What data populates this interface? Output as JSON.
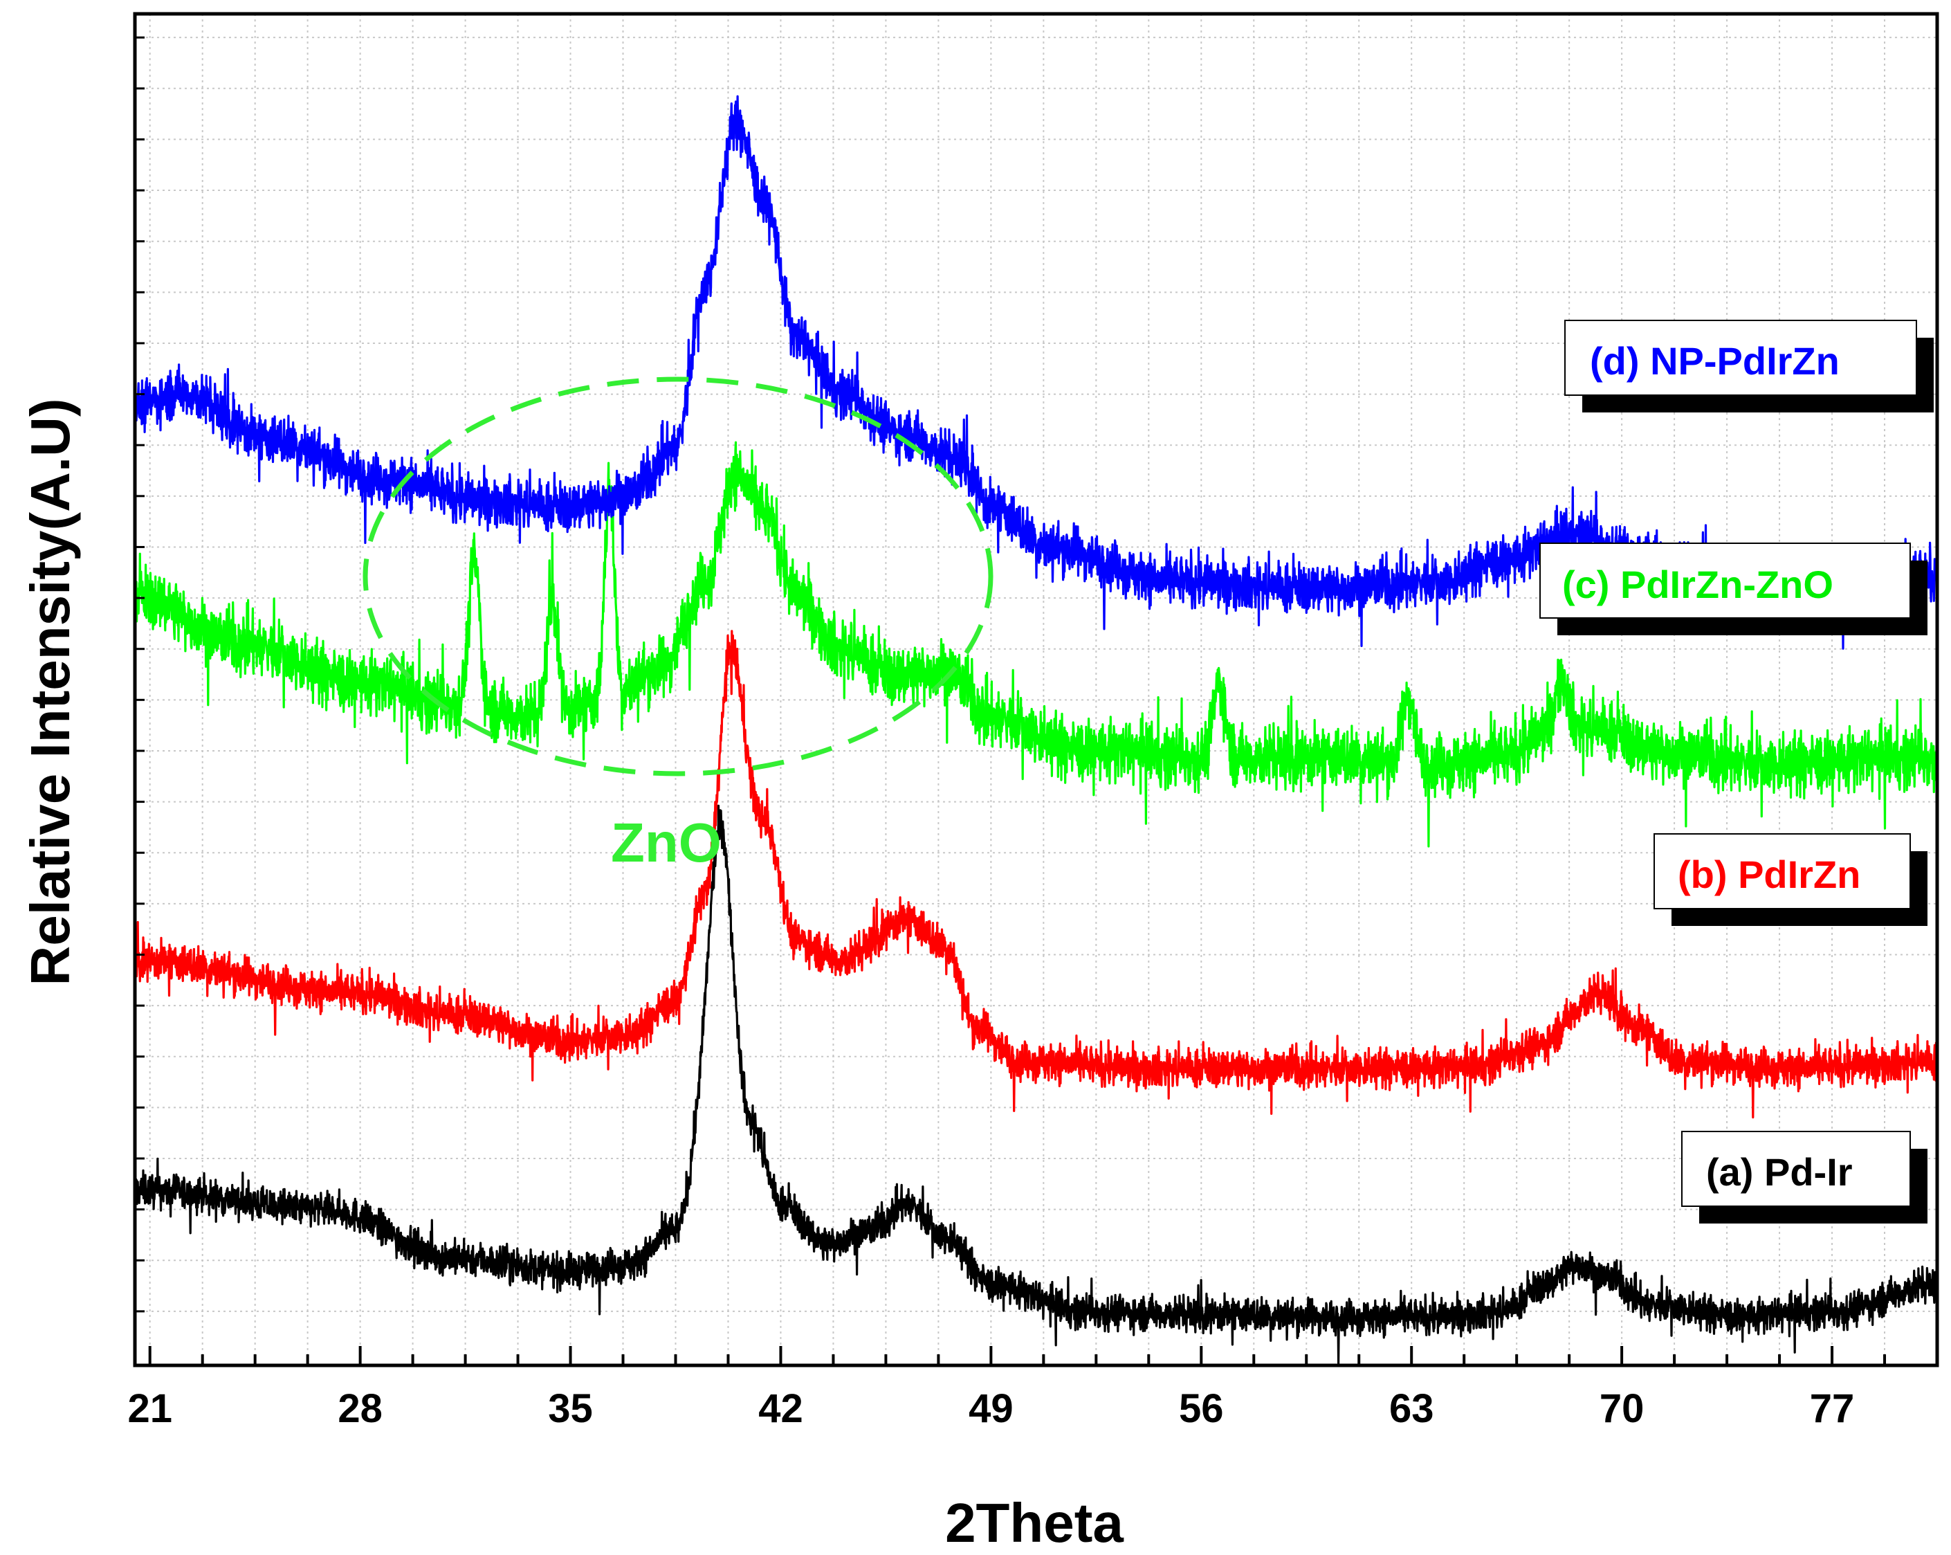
{
  "chart_data": {
    "type": "line",
    "title": "",
    "xlabel": "2Theta",
    "ylabel": "Relative Intensity(A.U)",
    "xlim": [
      20.5,
      80.5
    ],
    "ylim": [
      0,
      100
    ],
    "x_ticks": [
      21,
      28,
      35,
      42,
      49,
      56,
      63,
      70,
      77
    ],
    "grid": true,
    "y_tick_labels_shown": false,
    "series": [
      {
        "name": "(a) Pd-Ir",
        "color": "#000000",
        "baseline": [
          [
            20.5,
            13.0
          ],
          [
            27,
            11.5
          ],
          [
            31,
            8.0
          ],
          [
            35,
            7.0
          ],
          [
            37,
            7.5
          ],
          [
            38.5,
            10.0
          ],
          [
            40,
            28.0
          ],
          [
            41,
            18.0
          ],
          [
            42,
            12.0
          ],
          [
            43.5,
            9.0
          ],
          [
            45,
            10.0
          ],
          [
            46.2,
            12.0
          ],
          [
            47.5,
            9.5
          ],
          [
            49,
            6.0
          ],
          [
            52,
            4.0
          ],
          [
            56,
            3.8
          ],
          [
            60,
            3.6
          ],
          [
            64,
            3.6
          ],
          [
            66,
            4.0
          ],
          [
            67.5,
            6.0
          ],
          [
            68.5,
            7.5
          ],
          [
            69.5,
            6.5
          ],
          [
            71,
            4.5
          ],
          [
            74,
            3.6
          ],
          [
            77,
            4.0
          ],
          [
            80.5,
            6.0
          ]
        ],
        "peaks": [
          [
            40.0,
            12.0,
            0.35
          ]
        ],
        "noise": 0.9
      },
      {
        "name": "(b) PdIrZn",
        "color": "#ff0000",
        "baseline": [
          [
            20.5,
            30.0
          ],
          [
            28,
            27.5
          ],
          [
            31,
            26.0
          ],
          [
            35,
            24.0
          ],
          [
            37,
            24.5
          ],
          [
            38.5,
            27.0
          ],
          [
            39.5,
            35.0
          ],
          [
            40.3,
            48.0
          ],
          [
            41.5,
            40.0
          ],
          [
            42.5,
            31.5
          ],
          [
            44,
            30.0
          ],
          [
            46.2,
            33.0
          ],
          [
            47.5,
            31.0
          ],
          [
            48.5,
            25.0
          ],
          [
            50,
            22.5
          ],
          [
            54,
            22.0
          ],
          [
            60,
            22.0
          ],
          [
            65,
            22.0
          ],
          [
            67,
            23.5
          ],
          [
            69.3,
            27.5
          ],
          [
            70.5,
            25.0
          ],
          [
            72,
            22.5
          ],
          [
            76,
            22.0
          ],
          [
            80.5,
            22.5
          ]
        ],
        "peaks": [
          [
            40.4,
            5.0,
            0.3
          ]
        ],
        "noise": 1.0
      },
      {
        "name": "(c) PdIrZn-ZnO",
        "color": "#00ff00",
        "baseline": [
          [
            20.5,
            57.0
          ],
          [
            24,
            53.5
          ],
          [
            28,
            50.5
          ],
          [
            31,
            49.0
          ],
          [
            34,
            48.0
          ],
          [
            36,
            49.0
          ],
          [
            38,
            51.5
          ],
          [
            39.5,
            58.0
          ],
          [
            40.5,
            66.0
          ],
          [
            41.5,
            63.0
          ],
          [
            42.5,
            57.0
          ],
          [
            44,
            53.0
          ],
          [
            46,
            51.0
          ],
          [
            47.5,
            51.5
          ],
          [
            49,
            48.0
          ],
          [
            52,
            45.5
          ],
          [
            56,
            45.0
          ],
          [
            60,
            45.0
          ],
          [
            64,
            44.5
          ],
          [
            66,
            45.0
          ],
          [
            68,
            47.5
          ],
          [
            69.5,
            47.0
          ],
          [
            71,
            45.5
          ],
          [
            75,
            44.5
          ],
          [
            80.5,
            45.0
          ]
        ],
        "peaks": [
          [
            31.8,
            11.0,
            0.18
          ],
          [
            34.4,
            9.0,
            0.18
          ],
          [
            36.3,
            16.0,
            0.16
          ],
          [
            56.6,
            5.5,
            0.2
          ],
          [
            62.9,
            5.0,
            0.2
          ],
          [
            68.0,
            3.5,
            0.2
          ]
        ],
        "noise": 1.6
      },
      {
        "name": "(d) NP-PdIrZn",
        "color": "#0000ff",
        "baseline": [
          [
            20.5,
            71.0
          ],
          [
            22,
            72.0
          ],
          [
            25,
            68.5
          ],
          [
            29,
            65.5
          ],
          [
            32,
            64.0
          ],
          [
            35,
            63.5
          ],
          [
            37,
            64.5
          ],
          [
            38.5,
            68.0
          ],
          [
            39.5,
            80.0
          ],
          [
            40.5,
            92.0
          ],
          [
            41.5,
            86.0
          ],
          [
            42.5,
            76.0
          ],
          [
            44,
            72.0
          ],
          [
            46,
            69.0
          ],
          [
            48,
            67.0
          ],
          [
            49,
            63.5
          ],
          [
            51,
            60.5
          ],
          [
            55,
            58.0
          ],
          [
            60,
            57.5
          ],
          [
            64,
            58.0
          ],
          [
            66,
            59.5
          ],
          [
            68.5,
            61.5
          ],
          [
            70.5,
            60.0
          ],
          [
            73,
            58.5
          ],
          [
            77,
            58.0
          ],
          [
            80.5,
            58.5
          ]
        ],
        "peaks": [],
        "noise": 1.3
      }
    ],
    "legend_entries": [
      "(d) NP-PdIrZn",
      "(c) PdIrZn-ZnO",
      "(b) PdIrZn",
      "(a) Pd-Ir"
    ],
    "legend_placement": "right, labels beside each curve",
    "annotations": [
      {
        "text": "ZnO",
        "color": "#33ee33",
        "style": "dashed ellipse around ZnO peaks of curve (c)"
      }
    ]
  }
}
